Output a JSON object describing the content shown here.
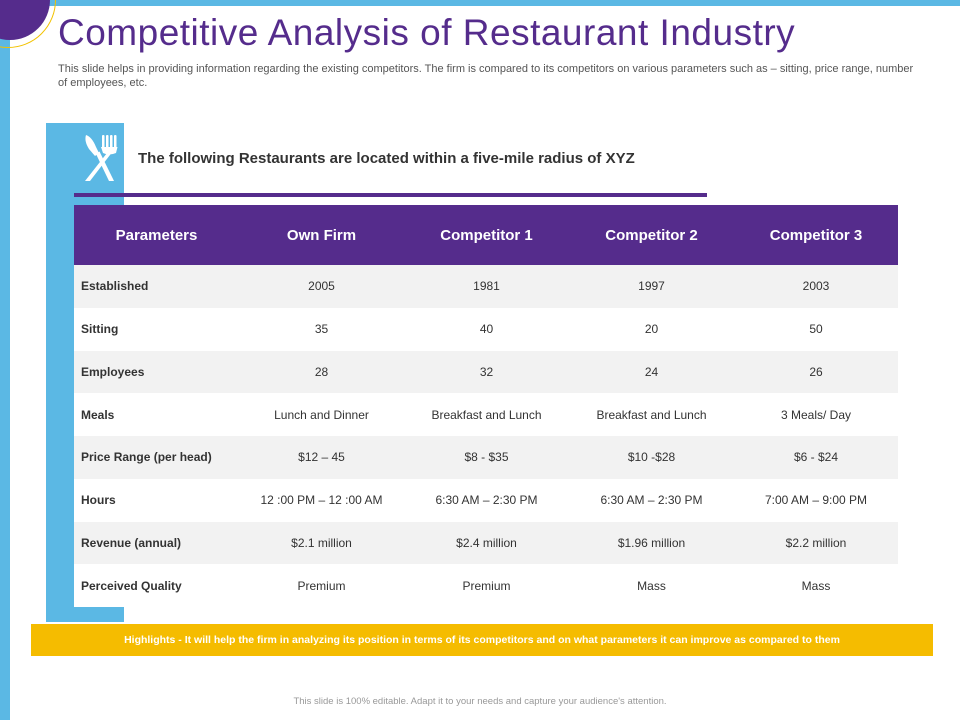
{
  "slide": {
    "title": "Competitive Analysis of Restaurant Industry",
    "subtitle": "This slide helps in providing information regarding the existing competitors. The firm is compared to its competitors on various parameters such as – sitting, price range, number of employees, etc.",
    "intro": "The following Restaurants are located within a five-mile radius of XYZ",
    "icon": "fork-knife-icon",
    "highlight": "Highlights  - It will help the firm in analyzing its position in terms of its competitors and on what parameters it can improve as compared to them",
    "footer": "This slide is 100% editable. Adapt it to your needs and capture your audience's attention."
  },
  "table": {
    "headers": [
      "Parameters",
      "Own Firm",
      "Competitor 1",
      "Competitor 2",
      "Competitor 3"
    ],
    "rows": [
      [
        "Established",
        "2005",
        "1981",
        "1997",
        "2003"
      ],
      [
        "Sitting",
        "35",
        "40",
        "20",
        "50"
      ],
      [
        "Employees",
        "28",
        "32",
        "24",
        "26"
      ],
      [
        "Meals",
        "Lunch and Dinner",
        "Breakfast and Lunch",
        "Breakfast and Lunch",
        "3 Meals/ Day"
      ],
      [
        "Price Range (per head)",
        "$12 – 45",
        "$8 - $35",
        "$10 -$28",
        "$6 - $24"
      ],
      [
        "Hours",
        "12 :00 PM – 12 :00 AM",
        "6:30 AM – 2:30 PM",
        "6:30 AM – 2:30 PM",
        "7:00 AM – 9:00 PM"
      ],
      [
        "Revenue (annual)",
        "$2.1 million",
        "$2.4 million",
        "$1.96 million",
        "$2.2 million"
      ],
      [
        "Perceived Quality",
        "Premium",
        "Premium",
        "Mass",
        "Mass"
      ]
    ]
  },
  "colors": {
    "accent_purple": "#552c8c",
    "accent_blue": "#5bb8e4",
    "highlight_yellow": "#f5bc00"
  }
}
